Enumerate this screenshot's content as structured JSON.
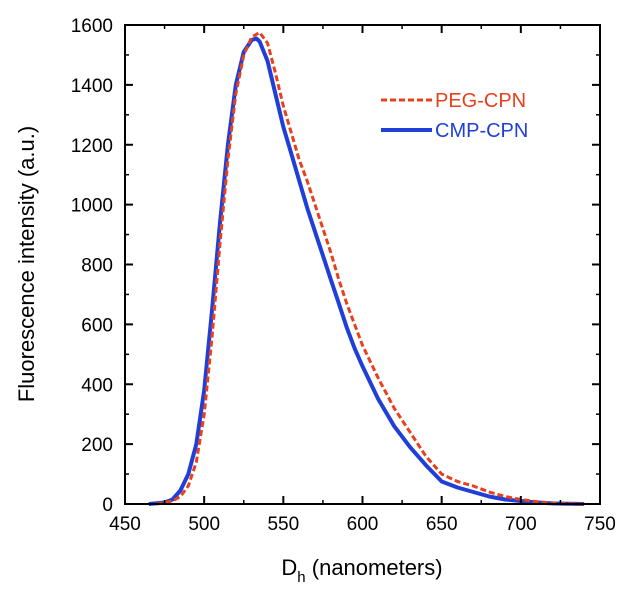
{
  "chart_data": {
    "type": "line",
    "title": "",
    "xlabel": {
      "main": "D",
      "sub": "h",
      "rest": " (nanometers)"
    },
    "ylabel": "Fluorescence intensity (a.u.)",
    "xlim": [
      450,
      750
    ],
    "ylim": [
      0,
      1600
    ],
    "xticks": [
      450,
      500,
      550,
      600,
      650,
      700,
      750
    ],
    "yticks": [
      0,
      200,
      400,
      600,
      800,
      1000,
      1200,
      1400,
      1600
    ],
    "grid": false,
    "legend_position": "upper-right",
    "series": [
      {
        "name": "PEG-CPN",
        "color": "#e8401c",
        "style": "dashed",
        "x": [
          470,
          480,
          485,
          490,
          495,
          500,
          505,
          510,
          515,
          520,
          525,
          530,
          535,
          540,
          545,
          550,
          555,
          560,
          565,
          570,
          575,
          580,
          585,
          590,
          595,
          600,
          610,
          620,
          630,
          640,
          650,
          660,
          670,
          680,
          690,
          700,
          710,
          720,
          730,
          740
        ],
        "y": [
          0,
          10,
          25,
          60,
          140,
          300,
          560,
          870,
          1150,
          1370,
          1500,
          1560,
          1575,
          1540,
          1440,
          1330,
          1240,
          1150,
          1080,
          1000,
          920,
          840,
          750,
          670,
          600,
          530,
          420,
          320,
          240,
          160,
          100,
          75,
          60,
          40,
          25,
          15,
          8,
          3,
          1,
          0
        ]
      },
      {
        "name": "CMP-CPN",
        "color": "#1f3fd8",
        "style": "solid",
        "x": [
          465,
          475,
          480,
          485,
          490,
          495,
          500,
          505,
          510,
          515,
          520,
          525,
          530,
          533,
          535,
          540,
          545,
          550,
          555,
          560,
          565,
          570,
          575,
          580,
          585,
          590,
          595,
          600,
          610,
          620,
          630,
          640,
          650,
          660,
          670,
          680,
          690,
          700,
          710,
          720,
          730,
          740
        ],
        "y": [
          0,
          5,
          15,
          45,
          100,
          200,
          380,
          650,
          940,
          1200,
          1400,
          1510,
          1550,
          1555,
          1545,
          1480,
          1370,
          1260,
          1170,
          1080,
          990,
          910,
          830,
          750,
          670,
          590,
          520,
          460,
          350,
          260,
          190,
          130,
          75,
          55,
          40,
          25,
          15,
          10,
          5,
          2,
          1,
          0
        ]
      }
    ]
  }
}
